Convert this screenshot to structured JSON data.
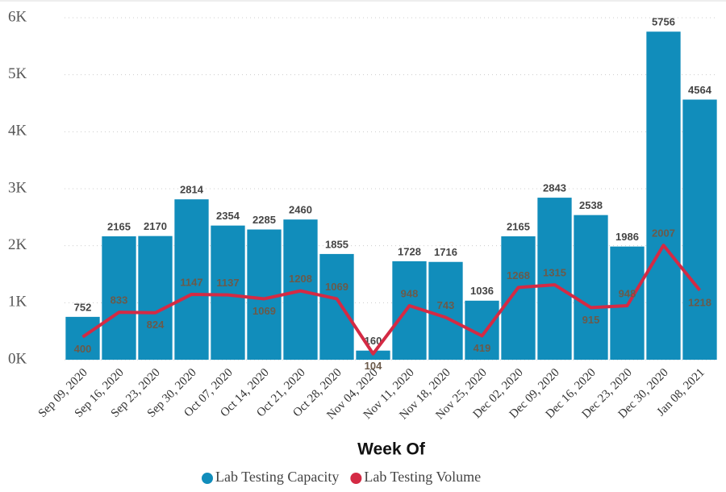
{
  "chart_data": {
    "type": "bar",
    "x_label": "Week Of",
    "categories": [
      "Sep 09, 2020",
      "Sep 16, 2020",
      "Sep 23, 2020",
      "Sep 30, 2020",
      "Oct 07, 2020",
      "Oct 14, 2020",
      "Oct 21, 2020",
      "Oct 28, 2020",
      "Nov 04, 2020",
      "Nov 11, 2020",
      "Nov 18, 2020",
      "Nov 25, 2020",
      "Dec 02, 2020",
      "Dec 09, 2020",
      "Dec 16, 2020",
      "Dec 23, 2020",
      "Dec 30, 2020",
      "Jan 08, 2021"
    ],
    "series": [
      {
        "name": "Lab Testing Capacity",
        "type": "bar",
        "color": "#118dbb",
        "values": [
          752,
          2165,
          2170,
          2814,
          2354,
          2285,
          2460,
          1855,
          160,
          1728,
          1716,
          1036,
          2165,
          2843,
          2538,
          1986,
          5756,
          4564
        ]
      },
      {
        "name": "Lab Testing Volume",
        "type": "line",
        "color": "#d42a44",
        "values": [
          400,
          833,
          824,
          1147,
          1137,
          1069,
          1208,
          1069,
          104,
          948,
          743,
          419,
          1268,
          1315,
          915,
          948,
          2007,
          1218
        ]
      }
    ],
    "ylim": [
      0,
      6000
    ],
    "yticks": [
      {
        "value": 0,
        "label": "0K"
      },
      {
        "value": 1000,
        "label": "1K"
      },
      {
        "value": 2000,
        "label": "2K"
      },
      {
        "value": 3000,
        "label": "3K"
      },
      {
        "value": 4000,
        "label": "4K"
      },
      {
        "value": 5000,
        "label": "5K"
      },
      {
        "value": 6000,
        "label": "6K"
      }
    ],
    "grid": true,
    "legend": "bottom"
  }
}
